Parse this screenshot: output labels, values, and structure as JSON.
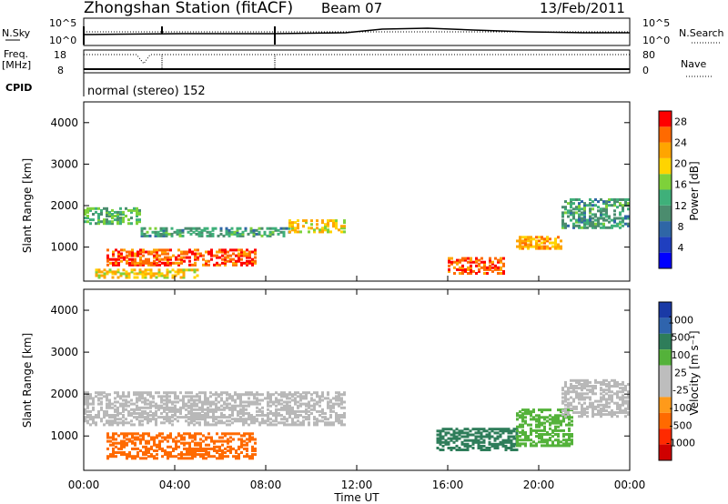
{
  "header": {
    "station": "Zhongshan Station (fitACF)",
    "beam": "Beam 07",
    "date": "13/Feb/2011"
  },
  "status_strip": {
    "nsky_label": "N.Sky",
    "nsky_ticks": [
      "10^5",
      "10^0"
    ],
    "nsearch_label": "N.Search",
    "nsearch_ticks": [
      "10^5",
      "10^0"
    ],
    "freq_label": "Freq.",
    "freq_unit": "[MHz]",
    "freq_ticks": [
      "18",
      "8"
    ],
    "nave_label": "Nave",
    "nave_ticks": [
      "80",
      "0"
    ],
    "cpid_label": "CPID",
    "cpid_value": "normal (stereo) 152"
  },
  "colors": {
    "power_scale": [
      "#0000ff",
      "#1f3fbf",
      "#2f66a6",
      "#4b8c6e",
      "#3fb07a",
      "#7ed13a",
      "#ffd400",
      "#ffa500",
      "#ff6a00",
      "#ff0000"
    ],
    "velocity_scale": [
      "#1a3aa6",
      "#2f64ad",
      "#2e7d5a",
      "#54b23a",
      "#bdbdbd",
      "#bdbdbd",
      "#ff9a1a",
      "#ff6a00",
      "#ff2a00",
      "#d00000"
    ],
    "ground_scatter": "#b8b8b8"
  },
  "chart_data": [
    {
      "type": "heatmap",
      "panel": "power",
      "ylabel": "Slant Range [km]",
      "ylim": [
        180,
        4500
      ],
      "y_ticks": [
        "1000",
        "2000",
        "3000",
        "4000"
      ],
      "colorbar": {
        "label": "Power [dB]",
        "ticks": [
          "4",
          "8",
          "12",
          "16",
          "20",
          "24",
          "28"
        ],
        "range": [
          0,
          30
        ]
      },
      "regions_hours_km_db": [
        [
          0.0,
          2.5,
          1600,
          2000,
          14
        ],
        [
          2.5,
          9.0,
          1300,
          1500,
          12
        ],
        [
          9.0,
          11.5,
          1400,
          1700,
          20
        ],
        [
          1.0,
          7.5,
          600,
          1000,
          26
        ],
        [
          0.5,
          5.0,
          300,
          500,
          20
        ],
        [
          16.0,
          18.5,
          400,
          800,
          26
        ],
        [
          19.0,
          21.0,
          1000,
          1300,
          22
        ],
        [
          21.0,
          24.0,
          1500,
          2200,
          12
        ]
      ]
    },
    {
      "type": "heatmap",
      "panel": "velocity",
      "ylabel": "Slant Range [km]",
      "ylim": [
        180,
        4500
      ],
      "y_ticks": [
        "1000",
        "2000",
        "3000",
        "4000"
      ],
      "colorbar": {
        "label": "Velocity [m s⁻¹]",
        "ticks": [
          "1000",
          "500",
          "100",
          "25",
          "-25",
          "-100",
          "-500",
          "-1000"
        ]
      },
      "regions_hours_km_mps": [
        [
          0.0,
          11.5,
          1300,
          2100,
          0
        ],
        [
          1.0,
          7.5,
          500,
          1100,
          -200
        ],
        [
          15.5,
          19.0,
          700,
          1200,
          150
        ],
        [
          19.0,
          21.5,
          800,
          1700,
          80
        ],
        [
          21.0,
          24.0,
          1500,
          2400,
          0
        ]
      ]
    }
  ],
  "x_axis": {
    "label": "Time UT",
    "ticks": [
      "00:00",
      "04:00",
      "08:00",
      "12:00",
      "16:00",
      "20:00",
      "00:00"
    ],
    "range_hours": [
      0,
      24
    ]
  }
}
